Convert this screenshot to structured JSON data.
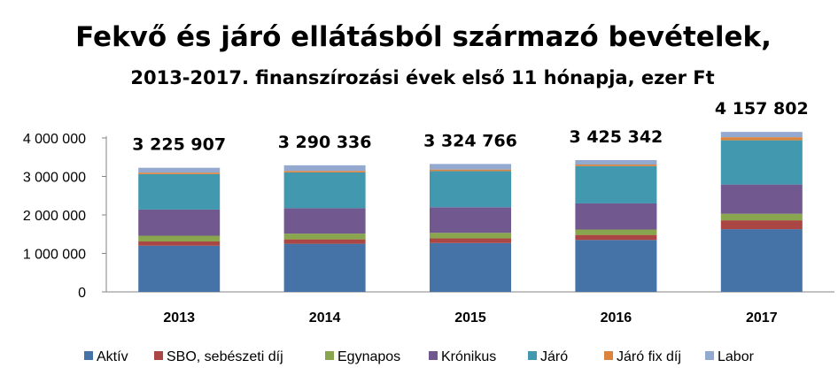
{
  "chart_data": {
    "type": "bar",
    "stacked": true,
    "title": "Fekvő és járó ellátásból származó bevételek,",
    "subtitle": "2013-2017. finanszírozási évek első 11 hónapja, ezer Ft",
    "categories": [
      "2013",
      "2014",
      "2015",
      "2016",
      "2017"
    ],
    "totals_labels": [
      "3 225 907",
      "3 290 336",
      "3 324 766",
      "3 425 342",
      "4 157 802"
    ],
    "ylim": [
      0,
      4000000
    ],
    "yticks": [
      0,
      1000000,
      2000000,
      3000000,
      4000000
    ],
    "ytick_labels": [
      "0",
      "1 000 000",
      "2 000 000",
      "3 000 000",
      "4 000 000"
    ],
    "grid": false,
    "legend_position": "bottom",
    "series": [
      {
        "name": "Aktív",
        "color": "#4572a7",
        "values": [
          1200000,
          1250000,
          1270000,
          1350000,
          1630000
        ]
      },
      {
        "name": "SBO, sebészeti díj",
        "color": "#aa4643",
        "values": [
          110000,
          115000,
          120000,
          130000,
          230000
        ]
      },
      {
        "name": "Egynapos",
        "color": "#89a54e",
        "values": [
          150000,
          150000,
          145000,
          140000,
          170000
        ]
      },
      {
        "name": "Krónikus",
        "color": "#71588f",
        "values": [
          680000,
          660000,
          665000,
          680000,
          760000
        ]
      },
      {
        "name": "Járó",
        "color": "#4198af",
        "values": [
          920000,
          930000,
          940000,
          970000,
          1150000
        ]
      },
      {
        "name": "Járó fix díj",
        "color": "#db843d",
        "values": [
          40000,
          40000,
          40000,
          40000,
          80000
        ]
      },
      {
        "name": "Labor",
        "color": "#93a9cf",
        "values": [
          125907,
          145336,
          144766,
          115342,
          137802
        ]
      }
    ]
  }
}
